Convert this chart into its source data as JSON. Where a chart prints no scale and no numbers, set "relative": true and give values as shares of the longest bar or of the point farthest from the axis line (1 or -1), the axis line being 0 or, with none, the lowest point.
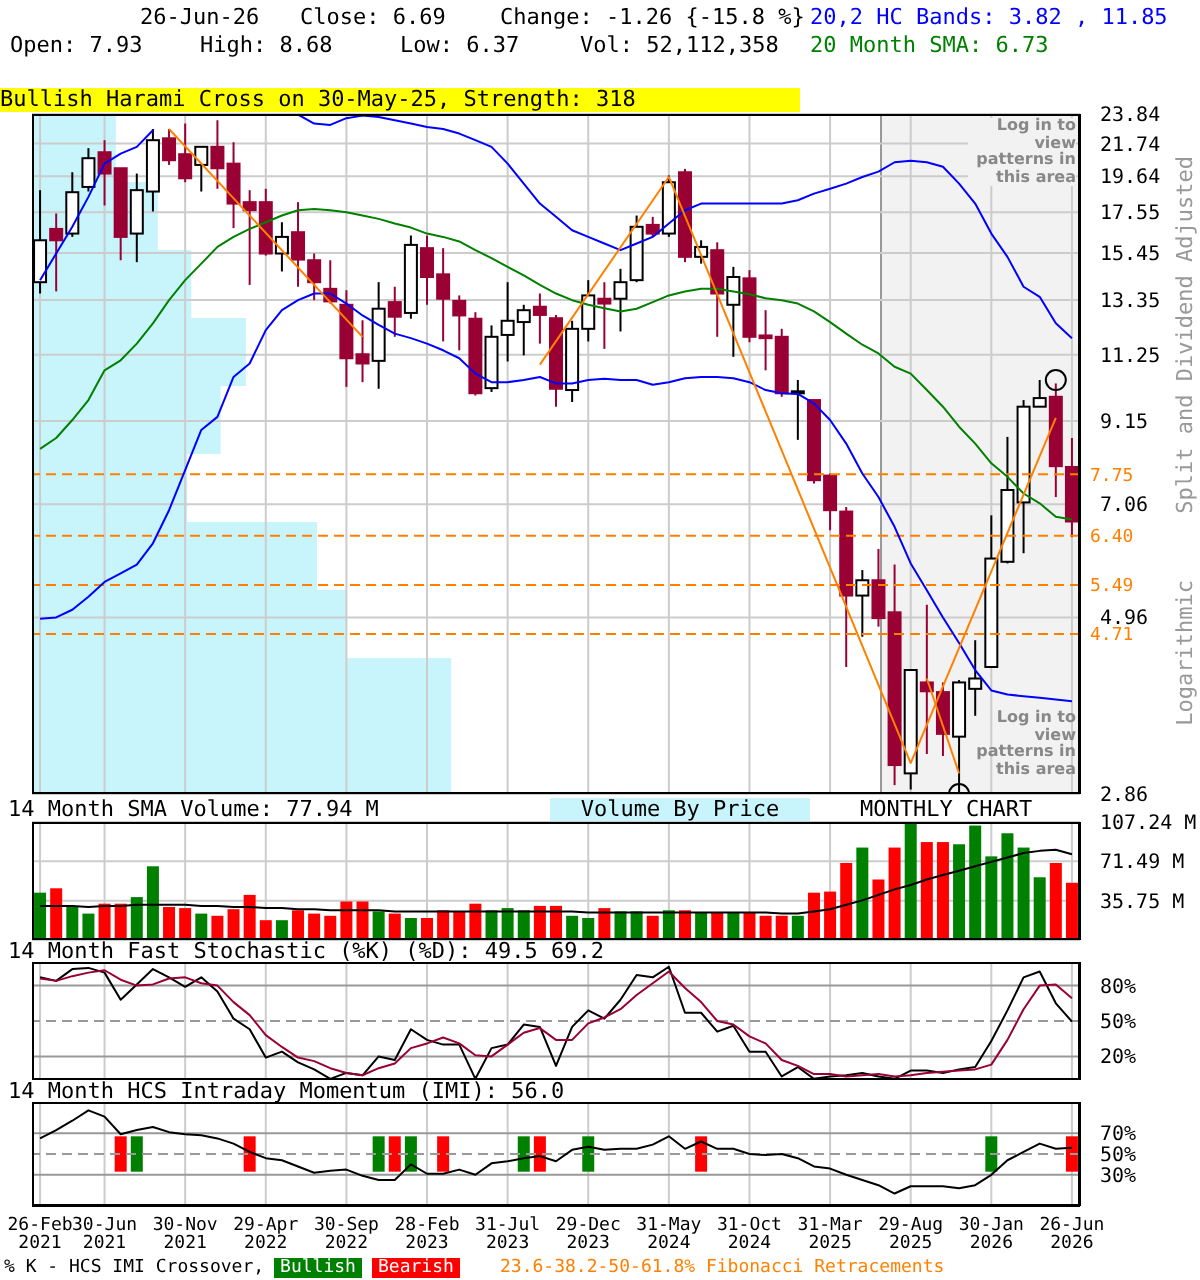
{
  "chart_data": [
    {
      "type": "candlestick",
      "ohlc": [
        [
          14.11,
          18.8,
          13.62,
          16.08
        ],
        [
          16.66,
          17.48,
          13.71,
          16.08
        ],
        [
          16.42,
          19.88,
          16.25,
          18.68
        ],
        [
          18.99,
          21.43,
          18.72,
          20.77
        ],
        [
          21.16,
          21.97,
          17.92,
          19.8
        ],
        [
          20.13,
          20.13,
          15.11,
          16.25
        ],
        [
          16.42,
          19.8,
          15.02,
          18.8
        ],
        [
          18.72,
          22.75,
          17.59,
          21.97
        ],
        [
          22.1,
          22.75,
          20.34,
          20.64
        ],
        [
          21.03,
          23.14,
          19.27,
          19.51
        ],
        [
          20.34,
          21.52,
          18.72,
          21.52
        ],
        [
          21.52,
          23.38,
          18.88,
          20.13
        ],
        [
          20.42,
          21.83,
          16.7,
          18.03
        ],
        [
          18.11,
          18.8,
          13.99,
          17.66
        ],
        [
          18.11,
          18.88,
          15.33,
          15.43
        ],
        [
          15.43,
          17.01,
          14.59,
          16.25
        ],
        [
          16.49,
          18.11,
          13.91,
          15.14
        ],
        [
          15.11,
          15.43,
          13.34,
          14.11
        ],
        [
          13.82,
          15.11,
          13.2,
          13.29
        ],
        [
          13.15,
          13.76,
          10.18,
          11.13
        ],
        [
          11.27,
          12.53,
          10.33,
          10.95
        ],
        [
          11.04,
          14.11,
          10.12,
          12.99
        ],
        [
          13.26,
          13.91,
          11.9,
          12.67
        ],
        [
          12.82,
          16.32,
          12.59,
          15.85
        ],
        [
          15.69,
          16.32,
          13.15,
          14.34
        ],
        [
          14.46,
          15.69,
          11.73,
          13.4
        ],
        [
          13.31,
          13.54,
          11.41,
          12.72
        ],
        [
          12.59,
          12.85,
          9.91,
          9.98
        ],
        [
          10.14,
          12.33,
          10.02,
          11.9
        ],
        [
          11.97,
          14.11,
          11.02,
          12.51
        ],
        [
          12.46,
          13.15,
          11.23,
          12.93
        ],
        [
          13.07,
          13.62,
          11.65,
          12.74
        ],
        [
          12.61,
          12.74,
          9.57,
          10.12
        ],
        [
          10.08,
          12.51,
          9.71,
          12.2
        ],
        [
          12.2,
          14.2,
          11.73,
          13.54
        ],
        [
          13.4,
          14.11,
          11.46,
          13.2
        ],
        [
          13.4,
          14.71,
          12.1,
          14.11
        ],
        [
          14.2,
          17.37,
          14.11,
          16.77
        ],
        [
          16.87,
          17.3,
          16.25,
          16.42
        ],
        [
          16.42,
          19.68,
          16.25,
          19.27
        ],
        [
          19.88,
          20.09,
          15.02,
          15.27
        ],
        [
          15.27,
          16.08,
          14.95,
          15.75
        ],
        [
          15.59,
          15.98,
          11.9,
          13.62
        ],
        [
          13.15,
          14.8,
          11.18,
          14.34
        ],
        [
          14.28,
          14.65,
          11.7,
          11.9
        ],
        [
          11.95,
          12.93,
          10.72,
          11.85
        ],
        [
          11.9,
          12.2,
          9.87,
          9.98
        ],
        [
          9.98,
          10.4,
          8.63,
          10.04
        ],
        [
          9.77,
          9.77,
          7.53,
          7.61
        ],
        [
          7.72,
          7.77,
          6.51,
          6.93
        ],
        [
          6.9,
          7.0,
          4.25,
          5.31
        ],
        [
          5.31,
          5.75,
          4.67,
          5.57
        ],
        [
          5.57,
          6.14,
          4.82,
          4.95
        ],
        [
          5.04,
          5.85,
          2.94,
          3.13
        ],
        [
          3.05,
          4.21,
          2.9,
          4.21
        ],
        [
          4.05,
          5.16,
          3.24,
          3.94
        ],
        [
          3.93,
          4.05,
          3.22,
          3.45
        ],
        [
          3.42,
          4.08,
          2.86,
          4.05
        ],
        [
          3.97,
          4.62,
          3.65,
          4.1
        ],
        [
          4.25,
          6.82,
          4.25,
          5.96
        ],
        [
          5.9,
          8.71,
          5.87,
          7.38
        ],
        [
          7.1,
          9.77,
          6.06,
          9.57
        ],
        [
          9.57,
          10.4,
          9.57,
          9.83
        ],
        [
          9.87,
          10.29,
          7.22,
          7.95
        ],
        [
          7.93,
          8.68,
          6.37,
          6.69
        ]
      ],
      "colors": [
        "#ffffff",
        "#990033",
        "#ffffff",
        "#ffffff",
        "#990033",
        "#990033",
        "#ffffff",
        "#ffffff",
        "#990033",
        "#990033",
        "#ffffff",
        "#990033",
        "#990033",
        "#990033",
        "#990033",
        "#ffffff",
        "#990033",
        "#990033",
        "#990033",
        "#990033",
        "#990033",
        "#ffffff",
        "#990033",
        "#ffffff",
        "#990033",
        "#990033",
        "#990033",
        "#990033",
        "#ffffff",
        "#ffffff",
        "#ffffff",
        "#990033",
        "#990033",
        "#ffffff",
        "#ffffff",
        "#990033",
        "#ffffff",
        "#ffffff",
        "#990033",
        "#ffffff",
        "#990033",
        "#ffffff",
        "#990033",
        "#ffffff",
        "#990033",
        "#990033",
        "#990033",
        "#ffffff",
        "#990033",
        "#990033",
        "#990033",
        "#ffffff",
        "#990033",
        "#990033",
        "#ffffff",
        "#990033",
        "#990033",
        "#ffffff",
        "#ffffff",
        "#ffffff",
        "#ffffff",
        "#ffffff",
        "#ffffff",
        "#990033",
        "#990033"
      ],
      "series": [
        {
          "type": "line",
          "color": "#0000ff",
          "values": [
            14.2,
            15.43,
            16.77,
            18.41,
            20.42,
            21.07,
            21.52,
            22.66,
            null,
            null,
            null,
            null,
            null,
            null,
            null,
            null,
            23.8,
            23.14,
            23.04,
            23.53,
            23.72,
            23.62,
            23.38,
            23.14,
            22.9,
            22.75,
            22.43,
            21.97,
            21.52,
            20.42,
            19.19,
            18.03,
            17.3,
            16.59,
            16.25,
            15.92,
            15.59,
            15.92,
            16.25,
            16.94,
            17.66,
            18.03,
            18.03,
            18.03,
            18.03,
            18.03,
            18.03,
            18.22,
            18.6,
            18.88,
            19.19,
            19.59,
            19.92,
            20.51,
            20.6,
            20.51,
            20.22,
            19.19,
            18.03,
            16.42,
            15.27,
            13.91,
            13.48,
            12.41,
            11.85
          ]
        },
        {
          "type": "line",
          "color": "#0000ff",
          "values": [
            4.94,
            4.96,
            5.08,
            5.29,
            5.54,
            5.69,
            5.85,
            6.25,
            6.93,
            7.85,
            8.9,
            9.27,
            10.5,
            10.95,
            12.15,
            12.93,
            13.34,
            13.62,
            13.62,
            13.2,
            12.72,
            12.35,
            12.02,
            11.85,
            11.65,
            11.41,
            11.13,
            10.61,
            10.33,
            10.33,
            10.4,
            10.5,
            10.29,
            10.29,
            10.4,
            10.44,
            10.4,
            10.4,
            10.25,
            10.33,
            10.46,
            10.5,
            10.5,
            10.46,
            10.33,
            10.08,
            9.98,
            9.96,
            9.67,
            9.18,
            8.53,
            7.77,
            7.22,
            6.58,
            5.87,
            5.4,
            4.96,
            4.58,
            4.21,
            3.95,
            3.9,
            3.88,
            3.86,
            3.84,
            3.82
          ]
        },
        {
          "type": "line",
          "color": "#008000",
          "values": [
            8.39,
            8.68,
            9.18,
            9.77,
            10.72,
            11.06,
            11.65,
            12.41,
            13.34,
            14.2,
            14.95,
            15.75,
            16.25,
            16.66,
            17.01,
            17.37,
            17.66,
            17.73,
            17.66,
            17.55,
            17.37,
            17.19,
            16.94,
            16.73,
            16.42,
            16.25,
            16.02,
            15.59,
            15.21,
            14.8,
            14.41,
            13.99,
            13.62,
            13.34,
            13.15,
            13.01,
            12.88,
            12.99,
            13.26,
            13.54,
            13.71,
            13.82,
            13.82,
            13.71,
            13.59,
            13.42,
            13.34,
            13.2,
            12.88,
            12.46,
            12.02,
            11.61,
            11.3,
            10.84,
            10.61,
            10.08,
            9.57,
            8.99,
            8.53,
            8.02,
            7.69,
            7.3,
            7.08,
            6.79,
            6.73
          ]
        },
        {
          "type": "line",
          "color": "#ff8000",
          "values": [
            null,
            null,
            null,
            null,
            null,
            null,
            null,
            null,
            22.75,
            null,
            null,
            null,
            null,
            null,
            null,
            null,
            null,
            null,
            null,
            null,
            11.9,
            null,
            null,
            null,
            null,
            null,
            null,
            null,
            null,
            null,
            null,
            null,
            null,
            null,
            null,
            null,
            null,
            null,
            null,
            null,
            null,
            null,
            null,
            null,
            null,
            null,
            null,
            null,
            null,
            null,
            null,
            null,
            null,
            null,
            null,
            null,
            null,
            null,
            null,
            null,
            null,
            null,
            null,
            null,
            null
          ]
        },
        {
          "type": "line",
          "color": "#ff8000",
          "values": [
            null,
            null,
            null,
            null,
            null,
            null,
            null,
            null,
            null,
            null,
            null,
            null,
            null,
            null,
            null,
            null,
            null,
            null,
            null,
            null,
            null,
            null,
            null,
            null,
            null,
            null,
            null,
            null,
            null,
            null,
            null,
            10.91,
            null,
            null,
            null,
            null,
            null,
            null,
            null,
            19.59,
            null,
            null,
            null,
            null,
            null,
            null,
            null,
            null,
            null,
            null,
            null,
            null,
            null,
            null,
            3.15,
            null,
            null,
            null,
            null,
            null,
            null,
            null,
            null,
            9.24,
            null
          ]
        },
        {
          "type": "line",
          "color": "#ff8000",
          "values": [
            null,
            null,
            null,
            null,
            null,
            null,
            null,
            null,
            null,
            null,
            null,
            null,
            null,
            null,
            null,
            null,
            null,
            null,
            null,
            null,
            null,
            null,
            null,
            null,
            null,
            null,
            null,
            null,
            null,
            null,
            null,
            null,
            null,
            null,
            null,
            null,
            null,
            null,
            null,
            null,
            null,
            null,
            null,
            null,
            null,
            null,
            null,
            null,
            null,
            null,
            null,
            null,
            null,
            null,
            null,
            4.1,
            null,
            3.05,
            null,
            null,
            null,
            null,
            null,
            null,
            null
          ]
        },
        {
          "type": "scatter",
          "marker": "circle",
          "color": "#000000",
          "values": [
            null,
            null,
            null,
            null,
            null,
            null,
            null,
            null,
            null,
            null,
            null,
            null,
            null,
            null,
            null,
            null,
            null,
            null,
            null,
            null,
            null,
            null,
            null,
            null,
            null,
            null,
            null,
            null,
            null,
            null,
            null,
            null,
            null,
            null,
            null,
            null,
            null,
            null,
            null,
            null,
            null,
            null,
            null,
            null,
            null,
            null,
            null,
            null,
            null,
            null,
            null,
            null,
            null,
            null,
            null,
            null,
            null,
            2.86,
            null,
            null,
            null,
            null,
            null,
            10.4,
            null
          ]
        }
      ],
      "log": true,
      "ylim": [
        2.86,
        23.84
      ],
      "yticks": [
        2.86,
        4.96,
        7.06,
        9.15,
        11.25,
        13.35,
        15.45,
        17.55,
        19.64,
        21.74,
        23.84
      ],
      "grid": true,
      "tick_labels": "y",
      "ref_lines": [
        {
          "axis": "y",
          "value": 7.75,
          "label": "7.75",
          "color": "#ff8000",
          "line_style": "dashed"
        },
        {
          "axis": "y",
          "value": 6.4,
          "label": "6.40",
          "color": "#ff8000",
          "line_style": "dashed"
        },
        {
          "axis": "y",
          "value": 5.49,
          "label": "5.49",
          "color": "#ff8000",
          "line_style": "dashed"
        },
        {
          "axis": "y",
          "value": 4.71,
          "label": "4.71",
          "color": "#ff8000",
          "line_style": "dashed"
        }
      ],
      "annotations": [
        "26-Jun-26",
        "Close: 6.69",
        "Change: -1.26 {-15.8 %}",
        "Open: 7.93",
        "High: 8.68",
        "Low: 6.37",
        "Vol: 52,112,358",
        "20,2 HC Bands: 3.82 , 11.85",
        "20 Month SMA: 6.73",
        "Bullish Harami Cross on 30-May-25, Strength: 318",
        "Log in to view patterns in this area",
        "Log in to view patterns in this area",
        "Split and Dividend Adjusted",
        "Logarithmic",
        "MONTHLY CHART",
        "Volume By Price"
      ]
    },
    {
      "type": "bar",
      "orientation": "horizontal",
      "relative": true,
      "categories": [
        null,
        null,
        null,
        null,
        null,
        null,
        null,
        null,
        null,
        null
      ],
      "values": [
        0.2,
        0.3,
        0.38,
        0.51,
        0.45,
        0.37,
        0.68,
        0.75,
        1,
        1
      ],
      "color": "#c8f4fc",
      "tick_labels": false
    },
    {
      "type": "bar",
      "title": "14 Month SMA Volume: 77.94 M",
      "series": [
        {
          "values": [
            43,
            47,
            30,
            24,
            33,
            33,
            39,
            67,
            30,
            29,
            24,
            22,
            28,
            41,
            18,
            18,
            27,
            24,
            22,
            35,
            35,
            26,
            24,
            20,
            20,
            27,
            26,
            33,
            27,
            29,
            27,
            31,
            31,
            22,
            20,
            29,
            26,
            26,
            22,
            27,
            27,
            25,
            25,
            25,
            25,
            22,
            22,
            22,
            43,
            44,
            70,
            84,
            55,
            84,
            107,
            89,
            89,
            87,
            104,
            76,
            97,
            84,
            57,
            70,
            52
          ],
          "colors": [
            "#008000",
            "#ff0000",
            "#008000",
            "#008000",
            "#ff0000",
            "#ff0000",
            "#008000",
            "#008000",
            "#ff0000",
            "#ff0000",
            "#008000",
            "#ff0000",
            "#ff0000",
            "#ff0000",
            "#ff0000",
            "#008000",
            "#ff0000",
            "#ff0000",
            "#ff0000",
            "#ff0000",
            "#ff0000",
            "#008000",
            "#ff0000",
            "#008000",
            "#ff0000",
            "#ff0000",
            "#ff0000",
            "#ff0000",
            "#008000",
            "#008000",
            "#008000",
            "#ff0000",
            "#ff0000",
            "#008000",
            "#008000",
            "#ff0000",
            "#008000",
            "#008000",
            "#ff0000",
            "#008000",
            "#ff0000",
            "#008000",
            "#ff0000",
            "#008000",
            "#ff0000",
            "#ff0000",
            "#ff0000",
            "#008000",
            "#ff0000",
            "#ff0000",
            "#ff0000",
            "#008000",
            "#ff0000",
            "#ff0000",
            "#008000",
            "#ff0000",
            "#ff0000",
            "#008000",
            "#008000",
            "#008000",
            "#008000",
            "#008000",
            "#008000",
            "#ff0000",
            "#ff0000"
          ]
        },
        {
          "type": "line",
          "color": "#000000",
          "values": [
            31,
            31,
            31,
            30,
            31,
            31,
            32,
            32,
            32,
            32,
            31,
            31,
            30,
            30,
            29,
            29,
            28,
            28,
            27,
            27,
            27,
            27,
            26,
            26,
            26,
            26,
            26,
            26,
            26,
            26,
            26,
            26,
            26,
            26,
            25,
            25,
            25,
            25,
            25,
            25,
            25,
            25,
            25,
            25,
            25,
            25,
            24,
            24,
            26,
            28,
            32,
            36,
            41,
            46,
            50,
            55,
            59,
            63,
            67,
            71,
            75,
            79,
            81,
            82,
            77.94
          ]
        }
      ],
      "ylim": [
        0,
        107.24
      ],
      "yticks": [
        {
          "value": 35.75,
          "label": "35.75 M"
        },
        {
          "value": 71.49,
          "label": "71.49 M"
        },
        {
          "value": 107.24,
          "label": "107.24 M"
        }
      ],
      "grid": true,
      "tick_labels": "y"
    },
    {
      "type": "line",
      "title": "14 Month Fast Stochastic (%K) (%D): 49.5  69.2",
      "series": [
        {
          "color": "#000000",
          "values": [
            87,
            84,
            94,
            95,
            91,
            68,
            81,
            94,
            87,
            79,
            87,
            75,
            52,
            43,
            19,
            24,
            15,
            9,
            1,
            6,
            4,
            20,
            17,
            43,
            34,
            30,
            30,
            1,
            27,
            30,
            47,
            45,
            12,
            45,
            59,
            52,
            68,
            89,
            87,
            96,
            57,
            57,
            41,
            46,
            24,
            24,
            3,
            11,
            1,
            3,
            4,
            6,
            3,
            1,
            8,
            8,
            6,
            9,
            11,
            33,
            59,
            87,
            92,
            65,
            49.5
          ]
        },
        {
          "color": "#990033",
          "values": [
            86,
            84,
            88,
            91,
            93,
            85,
            80,
            81,
            86,
            87,
            82,
            80,
            66,
            55,
            38,
            28,
            19,
            16,
            10,
            6,
            4,
            10,
            14,
            27,
            31,
            36,
            31,
            21,
            20,
            30,
            40,
            44,
            34,
            34,
            48,
            53,
            60,
            72,
            82,
            92,
            78,
            66,
            50,
            47,
            37,
            31,
            17,
            12,
            5,
            5,
            3,
            4,
            5,
            3,
            4,
            6,
            7,
            8,
            9,
            13,
            34,
            60,
            80,
            81,
            69.2
          ]
        }
      ],
      "ylim": [
        0,
        100
      ],
      "yticks": [
        {
          "value": 20,
          "label": "20%"
        },
        {
          "value": 50,
          "label": "50%"
        },
        {
          "value": 80,
          "label": "80%"
        }
      ],
      "grid": "x",
      "tick_labels": "y",
      "ref_lines": [
        {
          "axis": "y",
          "value": 80,
          "color": "#999999",
          "line_style": "solid"
        },
        {
          "axis": "y",
          "value": 50,
          "color": "#999999",
          "line_style": "dashed"
        },
        {
          "axis": "y",
          "value": 20,
          "color": "#999999",
          "line_style": "solid"
        }
      ]
    },
    {
      "type": "line",
      "title": "14 Month HCS Intraday Momentum (IMI): 56.0",
      "categories": [
        "26-Feb\n2021",
        null,
        null,
        null,
        "30-Jun\n2021",
        null,
        null,
        null,
        null,
        "30-Nov\n2021",
        null,
        null,
        null,
        null,
        "29-Apr\n2022",
        null,
        null,
        null,
        null,
        "30-Sep\n2022",
        null,
        null,
        null,
        null,
        "28-Feb\n2023",
        null,
        null,
        null,
        null,
        "31-Jul\n2023",
        null,
        null,
        null,
        null,
        "29-Dec\n2023",
        null,
        null,
        null,
        null,
        "31-May\n2024",
        null,
        null,
        null,
        null,
        "31-Oct\n2024",
        null,
        null,
        null,
        null,
        "31-Mar\n2025",
        null,
        null,
        null,
        null,
        "29-Aug\n2025",
        null,
        null,
        null,
        null,
        "30-Jan\n2026",
        null,
        null,
        null,
        null,
        "26-Jun\n2026"
      ],
      "series": [
        {
          "color": "#000000",
          "values": [
            65,
            73,
            82,
            92,
            86,
            69,
            73,
            76,
            71,
            69,
            68,
            65,
            60,
            52,
            46,
            44,
            38,
            32,
            34,
            35,
            29,
            25,
            25,
            40,
            31,
            31,
            35,
            30,
            41,
            43,
            46,
            48,
            43,
            54,
            57,
            54,
            55,
            55,
            59,
            67,
            55,
            62,
            55,
            55,
            50,
            49,
            50,
            46,
            38,
            36,
            30,
            25,
            20,
            12,
            19,
            19,
            19,
            17,
            20,
            30,
            44,
            52,
            60,
            55,
            56.0
          ]
        },
        {
          "type": "bar",
          "name": "Bullish",
          "color": "#008000",
          "values": [
            null,
            null,
            null,
            null,
            null,
            null,
            34,
            null,
            null,
            null,
            null,
            null,
            null,
            null,
            null,
            null,
            null,
            null,
            null,
            null,
            null,
            34,
            null,
            34,
            null,
            null,
            null,
            null,
            null,
            null,
            34,
            null,
            null,
            null,
            34,
            null,
            null,
            null,
            null,
            null,
            null,
            null,
            null,
            null,
            null,
            null,
            null,
            null,
            null,
            null,
            null,
            null,
            null,
            null,
            null,
            null,
            null,
            null,
            null,
            34,
            null,
            null,
            null,
            null,
            null
          ],
          "base": [
            null,
            null,
            null,
            null,
            null,
            null,
            33,
            null,
            null,
            null,
            null,
            null,
            null,
            null,
            null,
            null,
            null,
            null,
            null,
            null,
            null,
            33,
            null,
            33,
            null,
            null,
            null,
            null,
            null,
            null,
            33,
            null,
            null,
            null,
            33,
            null,
            null,
            null,
            null,
            null,
            null,
            null,
            null,
            null,
            null,
            null,
            null,
            null,
            null,
            null,
            null,
            null,
            null,
            null,
            null,
            null,
            null,
            null,
            null,
            33,
            null,
            null,
            null,
            null,
            null
          ]
        },
        {
          "type": "bar",
          "name": "Bearish",
          "color": "#ff0000",
          "values": [
            null,
            null,
            null,
            null,
            null,
            34,
            null,
            null,
            null,
            null,
            null,
            null,
            null,
            34,
            null,
            null,
            null,
            null,
            null,
            null,
            null,
            null,
            34,
            null,
            null,
            34,
            null,
            null,
            null,
            null,
            null,
            34,
            null,
            null,
            null,
            null,
            null,
            null,
            null,
            null,
            null,
            34,
            null,
            null,
            null,
            null,
            null,
            null,
            null,
            null,
            null,
            null,
            null,
            null,
            null,
            null,
            null,
            null,
            null,
            null,
            null,
            null,
            null,
            null,
            34
          ],
          "base": [
            null,
            null,
            null,
            null,
            null,
            33,
            null,
            null,
            null,
            null,
            null,
            null,
            null,
            33,
            null,
            null,
            null,
            null,
            null,
            null,
            null,
            null,
            33,
            null,
            null,
            33,
            null,
            null,
            null,
            null,
            null,
            33,
            null,
            null,
            null,
            null,
            null,
            null,
            null,
            null,
            null,
            33,
            null,
            null,
            null,
            null,
            null,
            null,
            null,
            null,
            null,
            null,
            null,
            null,
            null,
            null,
            null,
            null,
            null,
            null,
            null,
            null,
            null,
            null,
            33
          ]
        }
      ],
      "ylim": [
        0,
        100
      ],
      "yticks": [
        {
          "value": 30,
          "label": "30%"
        },
        {
          "value": 50,
          "label": "50%"
        },
        {
          "value": 70,
          "label": "70%"
        }
      ],
      "grid": "x",
      "ref_lines": [
        {
          "axis": "y",
          "value": 70,
          "color": "#999999",
          "line_style": "solid"
        },
        {
          "axis": "y",
          "value": 50,
          "color": "#999999",
          "line_style": "dashed"
        },
        {
          "axis": "y",
          "value": 30,
          "color": "#999999",
          "line_style": "solid"
        }
      ],
      "legend": "bottom",
      "legend_title": "% K - HCS IMI Crossover,",
      "annotations": [
        "23.6-38.2-50-61.8% Fibonacci Retracements"
      ]
    }
  ]
}
